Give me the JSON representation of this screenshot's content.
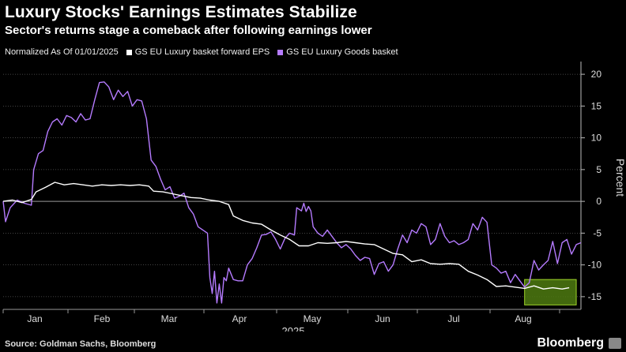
{
  "header": {
    "title": "Luxury Stocks' Earnings Estimates Stabilize",
    "subtitle": "Sector's returns stage a comeback after following earnings lower"
  },
  "legend": {
    "note": "Normalized As Of 01/01/2025",
    "items": [
      {
        "label": "GS EU Luxury basket forward EPS",
        "color": "#ffffff"
      },
      {
        "label": "GS EU Luxury Goods basket",
        "color": "#b57bff"
      }
    ]
  },
  "footer": {
    "source": "Source: Goldman Sachs, Bloomberg",
    "brand": "Bloomberg"
  },
  "chart_data": {
    "type": "line",
    "title": "Luxury Stocks' Earnings Estimates Stabilize",
    "xlabel": "2025",
    "ylabel": "Percent",
    "ylim": [
      -17,
      22
    ],
    "x_tick_labels": [
      "Jan",
      "Feb",
      "Mar",
      "Apr",
      "May",
      "Jun",
      "Jul",
      "Aug"
    ],
    "x_year_label": "2025",
    "y_ticks": [
      20,
      15,
      10,
      5,
      0,
      -5,
      -10,
      -15
    ],
    "highlight_box": {
      "x_start": 222,
      "x_end": 244,
      "y_low": -16.3,
      "y_high": -12.3
    },
    "series": [
      {
        "name": "GS EU Luxury basket forward EPS",
        "color": "#ffffff",
        "points": [
          [
            0,
            0
          ],
          [
            4,
            0.2
          ],
          [
            8,
            -0.2
          ],
          [
            12,
            0.3
          ],
          [
            14,
            1.5
          ],
          [
            18,
            2.2
          ],
          [
            22,
            3.0
          ],
          [
            26,
            2.6
          ],
          [
            30,
            2.8
          ],
          [
            34,
            2.6
          ],
          [
            38,
            2.4
          ],
          [
            42,
            2.6
          ],
          [
            46,
            2.5
          ],
          [
            50,
            2.6
          ],
          [
            54,
            2.5
          ],
          [
            58,
            2.6
          ],
          [
            62,
            2.4
          ],
          [
            64,
            1.6
          ],
          [
            68,
            1.5
          ],
          [
            72,
            1.2
          ],
          [
            76,
            0.9
          ],
          [
            80,
            0.6
          ],
          [
            84,
            0.5
          ],
          [
            88,
            0.2
          ],
          [
            92,
            0
          ],
          [
            96,
            -0.5
          ],
          [
            98,
            -2.3
          ],
          [
            102,
            -3.0
          ],
          [
            106,
            -3.4
          ],
          [
            110,
            -3.6
          ],
          [
            114,
            -4.5
          ],
          [
            118,
            -5.3
          ],
          [
            122,
            -6.0
          ],
          [
            126,
            -7.0
          ],
          [
            130,
            -7.0
          ],
          [
            134,
            -6.5
          ],
          [
            138,
            -6.6
          ],
          [
            142,
            -6.5
          ],
          [
            146,
            -6.3
          ],
          [
            150,
            -6.5
          ],
          [
            154,
            -6.7
          ],
          [
            158,
            -6.8
          ],
          [
            162,
            -7.5
          ],
          [
            166,
            -8.2
          ],
          [
            170,
            -8.4
          ],
          [
            174,
            -9.5
          ],
          [
            178,
            -9.2
          ],
          [
            182,
            -9.8
          ],
          [
            186,
            -9.9
          ],
          [
            190,
            -9.8
          ],
          [
            194,
            -9.9
          ],
          [
            198,
            -11.0
          ],
          [
            202,
            -11.6
          ],
          [
            206,
            -12.3
          ],
          [
            210,
            -13.4
          ],
          [
            214,
            -13.3
          ],
          [
            218,
            -13.5
          ],
          [
            222,
            -13.7
          ],
          [
            226,
            -13.3
          ],
          [
            230,
            -13.8
          ],
          [
            234,
            -13.6
          ],
          [
            238,
            -13.8
          ],
          [
            241,
            -13.6
          ]
        ]
      },
      {
        "name": "GS EU Luxury Goods basket",
        "color": "#b57bff",
        "points": [
          [
            0,
            0
          ],
          [
            1,
            -3.2
          ],
          [
            3,
            -1.0
          ],
          [
            6,
            0.2
          ],
          [
            9,
            -0.3
          ],
          [
            12,
            -0.6
          ],
          [
            13,
            5.0
          ],
          [
            15,
            7.5
          ],
          [
            17,
            8.0
          ],
          [
            19,
            11.0
          ],
          [
            21,
            12.5
          ],
          [
            23,
            13.0
          ],
          [
            25,
            12.0
          ],
          [
            27,
            13.5
          ],
          [
            29,
            13.2
          ],
          [
            31,
            12.5
          ],
          [
            33,
            13.8
          ],
          [
            35,
            12.8
          ],
          [
            37,
            13.0
          ],
          [
            39,
            16.0
          ],
          [
            41,
            18.7
          ],
          [
            43,
            18.8
          ],
          [
            45,
            18.0
          ],
          [
            47,
            16.0
          ],
          [
            49,
            17.5
          ],
          [
            51,
            16.5
          ],
          [
            53,
            17.3
          ],
          [
            55,
            15.0
          ],
          [
            57,
            16.0
          ],
          [
            59,
            15.8
          ],
          [
            61,
            13.0
          ],
          [
            63,
            6.5
          ],
          [
            65,
            5.5
          ],
          [
            67,
            3.5
          ],
          [
            69,
            1.8
          ],
          [
            71,
            2.3
          ],
          [
            73,
            0.5
          ],
          [
            75,
            0.8
          ],
          [
            77,
            1.3
          ],
          [
            79,
            -1.0
          ],
          [
            81,
            -2.0
          ],
          [
            83,
            -4.0
          ],
          [
            85,
            -4.5
          ],
          [
            87,
            -5.0
          ],
          [
            88,
            -12.0
          ],
          [
            89,
            -14.5
          ],
          [
            90,
            -11.0
          ],
          [
            91,
            -16.0
          ],
          [
            92,
            -13.0
          ],
          [
            93,
            -16.0
          ],
          [
            94,
            -12.0
          ],
          [
            95,
            -12.5
          ],
          [
            96,
            -10.5
          ],
          [
            98,
            -12.3
          ],
          [
            100,
            -12.5
          ],
          [
            102,
            -12.5
          ],
          [
            104,
            -10.0
          ],
          [
            106,
            -9.0
          ],
          [
            108,
            -7.3
          ],
          [
            110,
            -5.3
          ],
          [
            112,
            -5.2
          ],
          [
            114,
            -4.8
          ],
          [
            116,
            -6.0
          ],
          [
            118,
            -7.5
          ],
          [
            120,
            -5.8
          ],
          [
            122,
            -5.0
          ],
          [
            124,
            -5.3
          ],
          [
            125,
            -1.0
          ],
          [
            127,
            -1.5
          ],
          [
            128,
            -0.3
          ],
          [
            129,
            -1.6
          ],
          [
            130,
            -0.8
          ],
          [
            131,
            -1.5
          ],
          [
            132,
            -4.0
          ],
          [
            134,
            -5.0
          ],
          [
            136,
            -5.5
          ],
          [
            138,
            -4.5
          ],
          [
            140,
            -5.5
          ],
          [
            142,
            -6.5
          ],
          [
            144,
            -7.3
          ],
          [
            146,
            -6.8
          ],
          [
            148,
            -7.5
          ],
          [
            150,
            -8.5
          ],
          [
            152,
            -9.3
          ],
          [
            154,
            -8.8
          ],
          [
            156,
            -9.0
          ],
          [
            158,
            -11.5
          ],
          [
            160,
            -9.8
          ],
          [
            162,
            -9.5
          ],
          [
            164,
            -11.0
          ],
          [
            166,
            -10.0
          ],
          [
            168,
            -7.5
          ],
          [
            170,
            -5.3
          ],
          [
            172,
            -6.5
          ],
          [
            174,
            -4.5
          ],
          [
            176,
            -5.0
          ],
          [
            178,
            -3.5
          ],
          [
            180,
            -4.0
          ],
          [
            182,
            -6.8
          ],
          [
            184,
            -6.0
          ],
          [
            186,
            -3.5
          ],
          [
            188,
            -5.5
          ],
          [
            190,
            -6.5
          ],
          [
            192,
            -6.2
          ],
          [
            194,
            -6.8
          ],
          [
            196,
            -6.5
          ],
          [
            198,
            -6.0
          ],
          [
            200,
            -3.5
          ],
          [
            202,
            -4.5
          ],
          [
            204,
            -2.5
          ],
          [
            206,
            -3.3
          ],
          [
            208,
            -10.0
          ],
          [
            210,
            -10.5
          ],
          [
            212,
            -11.3
          ],
          [
            214,
            -11.0
          ],
          [
            216,
            -12.8
          ],
          [
            218,
            -11.5
          ],
          [
            220,
            -12.5
          ],
          [
            222,
            -13.5
          ],
          [
            224,
            -12.8
          ],
          [
            226,
            -9.3
          ],
          [
            228,
            -10.8
          ],
          [
            230,
            -10.0
          ],
          [
            232,
            -9.3
          ],
          [
            234,
            -6.3
          ],
          [
            236,
            -9.8
          ],
          [
            238,
            -6.5
          ],
          [
            240,
            -6.0
          ],
          [
            242,
            -8.3
          ],
          [
            244,
            -6.8
          ],
          [
            246,
            -6.5
          ]
        ]
      }
    ]
  }
}
